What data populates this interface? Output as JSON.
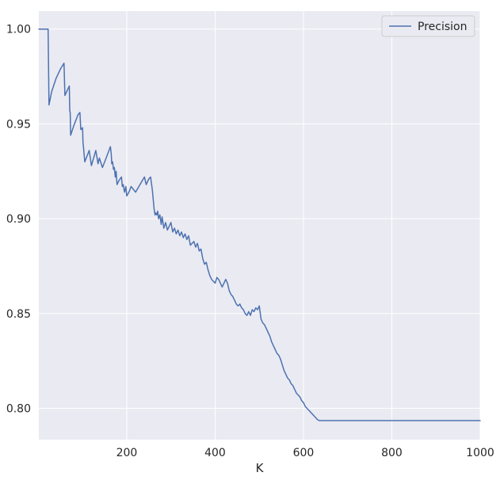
{
  "chart_data": {
    "type": "line",
    "title": "",
    "xlabel": "K",
    "ylabel": "",
    "xlim": [
      1,
      1000
    ],
    "ylim": [
      0.7835,
      1.0095
    ],
    "xticks": [
      200,
      400,
      600,
      800,
      1000
    ],
    "xtick_labels": [
      "200",
      "400",
      "600",
      "800",
      "1000"
    ],
    "yticks": [
      0.8,
      0.85,
      0.9,
      0.95,
      1.0
    ],
    "ytick_labels": [
      "0.80",
      "0.85",
      "0.90",
      "0.95",
      "1.00"
    ],
    "grid": true,
    "legend_position": "top-right",
    "background_color": "#eaeaf2",
    "grid_color": "#ffffff",
    "series": [
      {
        "name": "Precision",
        "color": "#4c72b0",
        "x": [
          1,
          10,
          22,
          24,
          30,
          40,
          50,
          58,
          60,
          64,
          70,
          71,
          72,
          73,
          80,
          90,
          94,
          96,
          100,
          101,
          102,
          105,
          110,
          115,
          120,
          125,
          130,
          135,
          138,
          145,
          155,
          163,
          165,
          166,
          168,
          170,
          172,
          174,
          176,
          178,
          180,
          182,
          188,
          190,
          192,
          195,
          198,
          200,
          205,
          210,
          220,
          230,
          240,
          244,
          248,
          250,
          254,
          258,
          262,
          264,
          266,
          268,
          270,
          272,
          275,
          278,
          280,
          284,
          288,
          292,
          296,
          300,
          304,
          308,
          312,
          316,
          320,
          324,
          328,
          332,
          336,
          340,
          344,
          348,
          352,
          356,
          360,
          364,
          368,
          372,
          376,
          380,
          384,
          388,
          392,
          396,
          400,
          404,
          408,
          412,
          416,
          420,
          424,
          428,
          432,
          436,
          440,
          444,
          448,
          452,
          456,
          460,
          464,
          468,
          472,
          476,
          480,
          484,
          488,
          492,
          496,
          500,
          504,
          508,
          512,
          516,
          520,
          524,
          528,
          532,
          536,
          540,
          544,
          548,
          552,
          556,
          560,
          564,
          568,
          572,
          576,
          580,
          584,
          588,
          592,
          596,
          600,
          604,
          608,
          612,
          616,
          620,
          624,
          628,
          632,
          636,
          640,
          644,
          648,
          652,
          656,
          660,
          664,
          668,
          700,
          800,
          900,
          1000
        ],
        "y": [
          1.0,
          1.0,
          1.0,
          0.96,
          0.967,
          0.974,
          0.979,
          0.982,
          0.965,
          0.967,
          0.97,
          0.957,
          0.956,
          0.944,
          0.949,
          0.955,
          0.956,
          0.947,
          0.948,
          0.94,
          0.938,
          0.93,
          0.933,
          0.936,
          0.928,
          0.932,
          0.936,
          0.929,
          0.932,
          0.927,
          0.933,
          0.938,
          0.934,
          0.929,
          0.93,
          0.926,
          0.927,
          0.922,
          0.925,
          0.918,
          0.919,
          0.92,
          0.922,
          0.917,
          0.918,
          0.914,
          0.917,
          0.912,
          0.914,
          0.917,
          0.914,
          0.918,
          0.922,
          0.918,
          0.92,
          0.921,
          0.922,
          0.915,
          0.905,
          0.902,
          0.903,
          0.902,
          0.904,
          0.9,
          0.902,
          0.897,
          0.901,
          0.895,
          0.898,
          0.894,
          0.896,
          0.898,
          0.893,
          0.895,
          0.892,
          0.894,
          0.891,
          0.893,
          0.89,
          0.892,
          0.889,
          0.891,
          0.886,
          0.887,
          0.888,
          0.885,
          0.887,
          0.883,
          0.884,
          0.879,
          0.876,
          0.877,
          0.873,
          0.87,
          0.868,
          0.867,
          0.866,
          0.869,
          0.868,
          0.866,
          0.864,
          0.866,
          0.868,
          0.866,
          0.862,
          0.86,
          0.859,
          0.857,
          0.855,
          0.854,
          0.855,
          0.853,
          0.852,
          0.85,
          0.849,
          0.851,
          0.849,
          0.852,
          0.851,
          0.853,
          0.852,
          0.854,
          0.847,
          0.845,
          0.844,
          0.842,
          0.84,
          0.838,
          0.835,
          0.833,
          0.831,
          0.829,
          0.828,
          0.826,
          0.823,
          0.82,
          0.818,
          0.816,
          0.815,
          0.813,
          0.812,
          0.81,
          0.808,
          0.807,
          0.806,
          0.804,
          0.803,
          0.801,
          0.8,
          0.799,
          0.798,
          0.797,
          0.796,
          0.795,
          0.794,
          0.7935,
          0.7935,
          0.7935,
          0.7935,
          0.7935,
          0.7935,
          0.7935,
          0.7935,
          0.7935,
          0.7935,
          0.7935,
          0.7935,
          0.7935
        ]
      }
    ]
  }
}
